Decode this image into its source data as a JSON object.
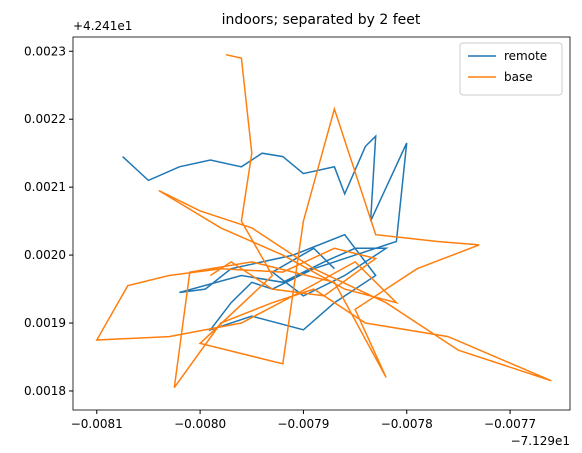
{
  "chart_data": {
    "type": "line",
    "title": "indoors; separated by 2 feet",
    "x_offset_label": "−7.129e1",
    "y_offset_label": "+4.241e1",
    "xlim": [
      -0.008123,
      -0.007642
    ],
    "ylim": [
      0.001772,
      0.002321
    ],
    "xticks": [
      {
        "value": -0.0081,
        "label": "−0.0081"
      },
      {
        "value": -0.008,
        "label": "−0.0080"
      },
      {
        "value": -0.0079,
        "label": "−0.0079"
      },
      {
        "value": -0.0078,
        "label": "−0.0078"
      },
      {
        "value": -0.0077,
        "label": "−0.0077"
      }
    ],
    "yticks": [
      0.0018,
      0.0019,
      {
        "value": 0.002,
        "label": "0.0020"
      },
      0.0021,
      0.0022,
      0.0023
    ],
    "legend": "upper right",
    "series": [
      {
        "name": "remote",
        "color": "#1f77b4",
        "x": [
          -0.008075,
          -0.00805,
          -0.00802,
          -0.00799,
          -0.00796,
          -0.00794,
          -0.00792,
          -0.0079,
          -0.00787,
          -0.00786,
          -0.00784,
          -0.00783,
          -0.007835,
          -0.0078,
          -0.00781,
          -0.00785,
          -0.00789,
          -0.00793,
          -0.00795,
          -0.00797,
          -0.00799,
          -0.00795,
          -0.0079,
          -0.00787,
          -0.00783,
          -0.00786,
          -0.00791,
          -0.00794,
          -0.00797,
          -0.007995,
          -0.00802,
          -0.00796,
          -0.00792,
          -0.00788,
          -0.00785,
          -0.00782,
          -0.00786,
          -0.0079,
          -0.00793,
          -0.00789,
          -0.00787
        ],
        "values": [
          0.002145,
          0.00211,
          0.00213,
          0.00214,
          0.00213,
          0.00215,
          0.002145,
          0.00212,
          0.00213,
          0.00209,
          0.00216,
          0.002175,
          0.00205,
          0.002165,
          0.00202,
          0.002,
          0.00198,
          0.00195,
          0.00196,
          0.00193,
          0.00189,
          0.00191,
          0.00189,
          0.00193,
          0.00197,
          0.00203,
          0.002,
          0.00199,
          0.00198,
          0.00195,
          0.001945,
          0.00197,
          0.00196,
          0.00199,
          0.00201,
          0.00201,
          0.00197,
          0.00194,
          0.001975,
          0.00201,
          0.00198
        ]
      },
      {
        "name": "base",
        "color": "#ff7f0e",
        "x": [
          -0.007975,
          -0.00796,
          -0.00795,
          -0.00796,
          -0.00793,
          -0.008,
          -0.00792,
          -0.0079,
          -0.00787,
          -0.00783,
          -0.00777,
          -0.00773,
          -0.00779,
          -0.00785,
          -0.00782,
          -0.00787,
          -0.00795,
          -0.00801,
          -0.008025,
          -0.00798,
          -0.00793,
          -0.00789,
          -0.00784,
          -0.00776,
          -0.00766,
          -0.00775,
          -0.00782,
          -0.00789,
          -0.00795,
          -0.008,
          -0.00804,
          -0.00798,
          -0.00792,
          -0.00786,
          -0.00781,
          -0.00785,
          -0.00791,
          -0.00796,
          -0.00803,
          -0.0081,
          -0.00807,
          -0.00803,
          -0.00798,
          -0.00792,
          -0.00787,
          -0.00783,
          -0.00788,
          -0.00793,
          -0.00797,
          -0.00799
        ],
        "values": [
          0.002295,
          0.00229,
          0.00215,
          0.00205,
          0.00197,
          0.00187,
          0.00184,
          0.00205,
          0.002215,
          0.00203,
          0.00202,
          0.002015,
          0.00198,
          0.00192,
          0.00182,
          0.00196,
          0.00199,
          0.001975,
          0.001805,
          0.0019,
          0.00193,
          0.00195,
          0.0019,
          0.00188,
          0.001815,
          0.00186,
          0.00193,
          0.00198,
          0.00204,
          0.002065,
          0.002095,
          0.00204,
          0.002,
          0.00195,
          0.00193,
          0.00199,
          0.00194,
          0.0019,
          0.00188,
          0.001875,
          0.001955,
          0.00197,
          0.00198,
          0.001975,
          0.00201,
          0.001995,
          0.00194,
          0.00195,
          0.00199,
          0.00197
        ]
      }
    ]
  }
}
